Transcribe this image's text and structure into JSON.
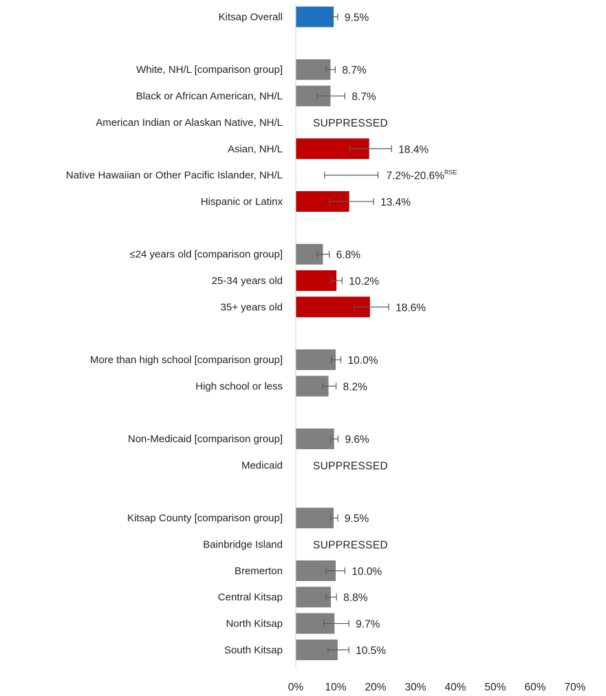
{
  "chart_data": {
    "type": "bar",
    "orientation": "horizontal",
    "title": "",
    "xlabel": "",
    "ylabel": "",
    "xlim": [
      0,
      70
    ],
    "ticks": [
      0,
      10,
      20,
      30,
      40,
      50,
      60,
      70
    ],
    "tick_format": "%",
    "grid": false,
    "legend": "none",
    "colors": {
      "overall": "#1f72c1",
      "significant": "#c00000",
      "neutral": "#808080",
      "error_bar": "#595959",
      "axis": "#d0d0d0"
    },
    "rows": [
      {
        "category": "Kitsap Overall",
        "value": 9.5,
        "label": "9.5%",
        "low": 8.7,
        "high": 10.5,
        "group": "overall",
        "slot": 0
      },
      {
        "category": "White, NH/L [comparison group]",
        "value": 8.7,
        "label": "8.7%",
        "low": 7.6,
        "high": 9.9,
        "group": "neutral",
        "slot": 2
      },
      {
        "category": "Black or African American, NH/L",
        "value": 8.7,
        "label": "8.7%",
        "low": 5.4,
        "high": 12.3,
        "group": "neutral",
        "slot": 3
      },
      {
        "category": "American Indian or Alaskan Native, NH/L",
        "value": null,
        "label": "SUPPRESSED",
        "group": "suppressed",
        "slot": 4
      },
      {
        "category": "Asian, NH/L",
        "value": 18.4,
        "label": "18.4%",
        "low": 13.5,
        "high": 24.0,
        "group": "significant",
        "slot": 5
      },
      {
        "category": "Native Hawaiian or Other Pacific Islander, NH/L",
        "value": null,
        "label": "7.2%-20.6%",
        "label_sup": "RSE",
        "low": 7.2,
        "high": 20.6,
        "group": "range",
        "slot": 6
      },
      {
        "category": "Hispanic or Latinx",
        "value": 13.4,
        "label": "13.4%",
        "low": 8.5,
        "high": 19.5,
        "group": "significant",
        "slot": 7
      },
      {
        "category": "≤24 years old [comparison group]",
        "value": 6.8,
        "label": "6.8%",
        "low": 5.4,
        "high": 8.4,
        "group": "neutral",
        "slot": 9
      },
      {
        "category": "25-34 years old",
        "value": 10.2,
        "label": "10.2%",
        "low": 8.9,
        "high": 11.6,
        "group": "significant",
        "slot": 10
      },
      {
        "category": "35+ years old",
        "value": 18.6,
        "label": "18.6%",
        "low": 14.7,
        "high": 23.3,
        "group": "significant",
        "slot": 11
      },
      {
        "category": "More than high school [comparison group]",
        "value": 10.0,
        "label": "10.0%",
        "low": 8.9,
        "high": 11.3,
        "group": "neutral",
        "slot": 13
      },
      {
        "category": "High school or less",
        "value": 8.2,
        "label": "8.2%",
        "low": 6.7,
        "high": 10.1,
        "group": "neutral",
        "slot": 14
      },
      {
        "category": "Non-Medicaid [comparison group]",
        "value": 9.6,
        "label": "9.6%",
        "low": 8.8,
        "high": 10.6,
        "group": "neutral",
        "slot": 16
      },
      {
        "category": "Medicaid",
        "value": null,
        "label": "SUPPRESSED",
        "group": "suppressed",
        "slot": 17
      },
      {
        "category": "Kitsap County [comparison group]",
        "value": 9.5,
        "label": "9.5%",
        "low": 8.7,
        "high": 10.5,
        "group": "neutral",
        "slot": 19
      },
      {
        "category": "Bainbridge Island",
        "value": null,
        "label": "SUPPRESSED",
        "group": "suppressed",
        "slot": 20
      },
      {
        "category": "Bremerton",
        "value": 10.0,
        "label": "10.0%",
        "low": 7.6,
        "high": 12.3,
        "group": "neutral",
        "slot": 21
      },
      {
        "category": "Central Kitsap",
        "value": 8.8,
        "label": "8.8%",
        "low": 7.6,
        "high": 10.2,
        "group": "neutral",
        "slot": 22
      },
      {
        "category": "North Kitsap",
        "value": 9.7,
        "label": "9.7%",
        "low": 7.0,
        "high": 13.3,
        "group": "neutral",
        "slot": 23
      },
      {
        "category": "South Kitsap",
        "value": 10.5,
        "label": "10.5%",
        "low": 8.1,
        "high": 13.3,
        "group": "neutral",
        "slot": 24
      }
    ]
  }
}
